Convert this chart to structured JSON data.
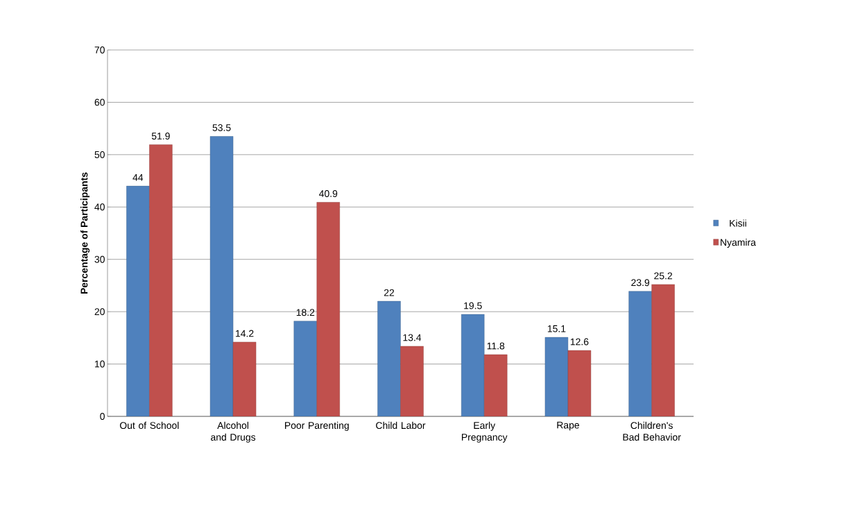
{
  "chart_data": {
    "type": "bar",
    "ylabel": "Percentage of Participants",
    "categories": [
      "Out of School",
      "Alcohol and Drugs",
      "Poor Parenting",
      "Child Labor",
      "Early Pregnancy",
      "Rape",
      "Children's Bad Behavior"
    ],
    "series": [
      {
        "name": "Kisii",
        "color": "#4f81bd",
        "values": [
          44,
          53.5,
          18.2,
          22,
          19.5,
          15.1,
          23.9
        ]
      },
      {
        "name": "Nyamira",
        "color": "#c0504d",
        "values": [
          51.9,
          14.2,
          40.9,
          13.4,
          11.8,
          12.6,
          25.2
        ]
      }
    ],
    "ylim": [
      0,
      70
    ],
    "yticks": [
      0,
      10,
      20,
      30,
      40,
      50,
      60,
      70
    ],
    "grid": "y",
    "legend": "right",
    "data_labels": true
  }
}
